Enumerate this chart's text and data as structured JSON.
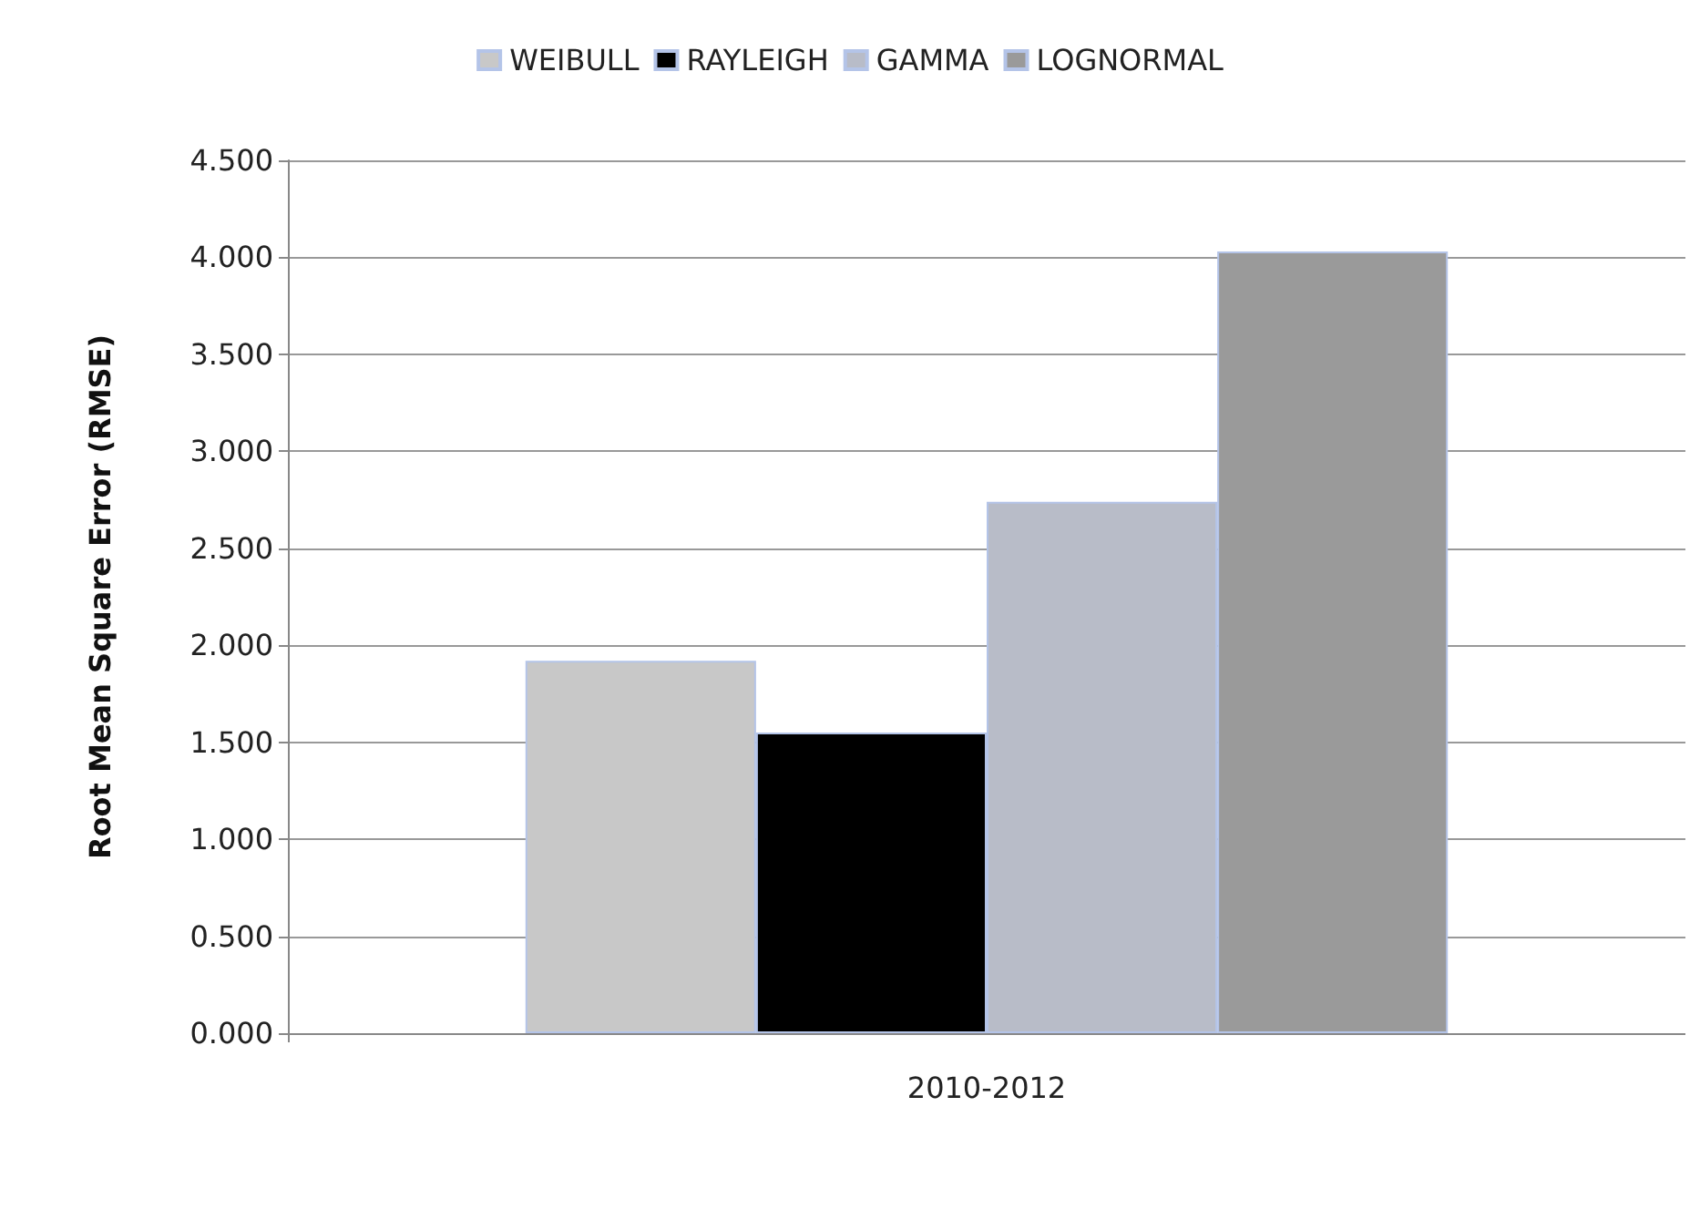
{
  "chart_data": {
    "type": "bar",
    "ylabel": "Root Mean Square Error (RMSE)",
    "categories": [
      "2010-2012"
    ],
    "series": [
      {
        "name": "WEIBULL",
        "color": "#c8c8c8",
        "values": [
          1.92
        ]
      },
      {
        "name": "RAYLEIGH",
        "color": "#000000",
        "values": [
          1.55
        ]
      },
      {
        "name": "GAMMA",
        "color": "#b8bcc8",
        "values": [
          2.74
        ]
      },
      {
        "name": "LOGNORMAL",
        "color": "#9a9a9a",
        "values": [
          4.03
        ]
      }
    ],
    "ylim": [
      0,
      4.5
    ],
    "yticks": [
      {
        "value": 0,
        "label": "0.000"
      },
      {
        "value": 0.5,
        "label": "0.500"
      },
      {
        "value": 1,
        "label": "1.000"
      },
      {
        "value": 1.5,
        "label": "1.500"
      },
      {
        "value": 2,
        "label": "2.000"
      },
      {
        "value": 2.5,
        "label": "2.500"
      },
      {
        "value": 3,
        "label": "3.000"
      },
      {
        "value": 3.5,
        "label": "3.500"
      },
      {
        "value": 4,
        "label": "4.000"
      },
      {
        "value": 4.5,
        "label": "4.500"
      }
    ],
    "grid": "y",
    "legend": "top"
  }
}
